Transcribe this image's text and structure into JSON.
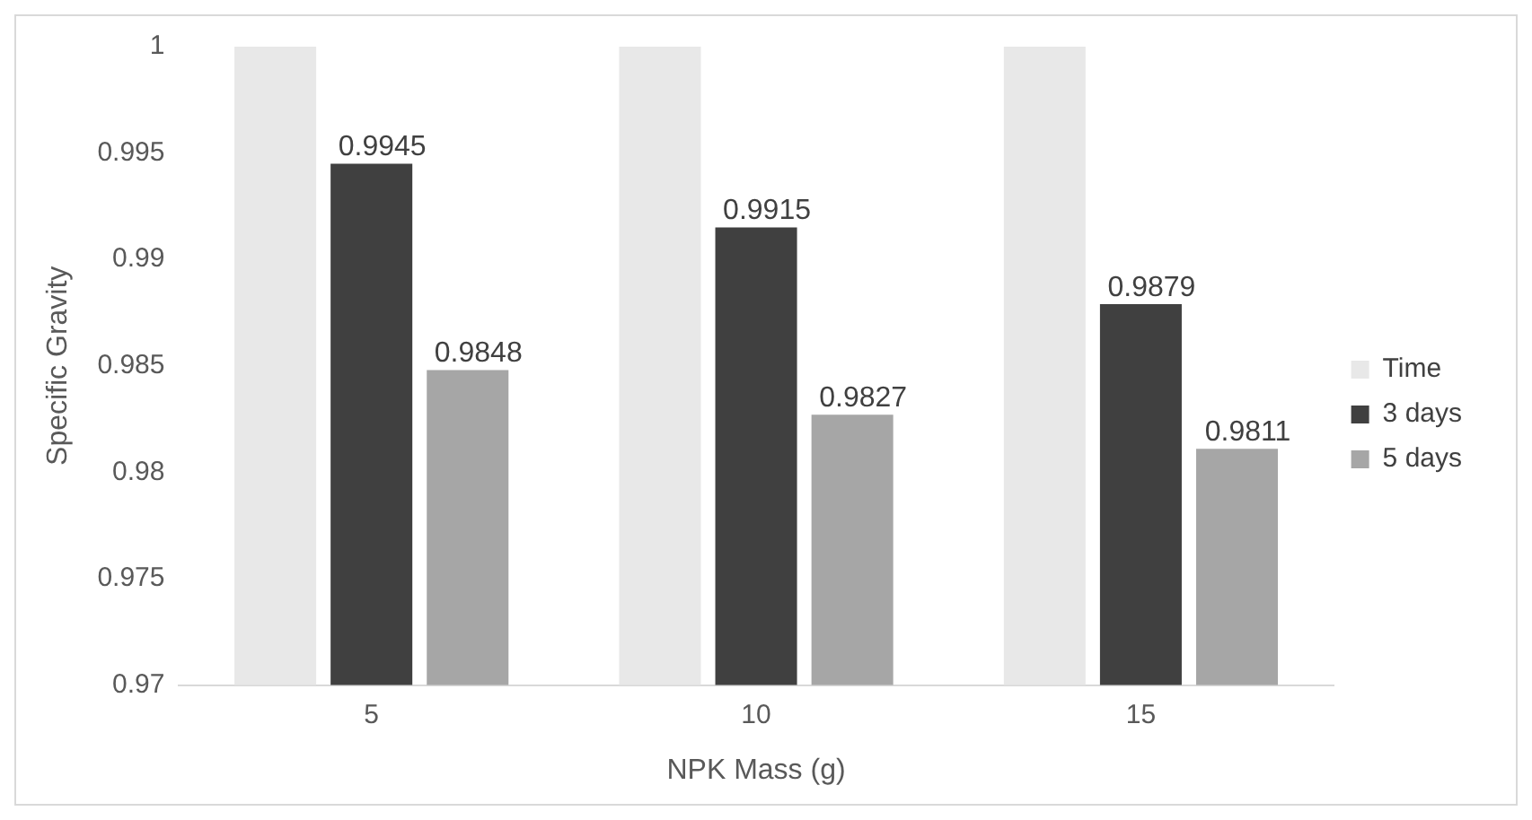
{
  "chart_data": {
    "type": "bar",
    "xlabel": "NPK Mass (g)",
    "ylabel": "Specific Gravity",
    "categories": [
      "5",
      "10",
      "15"
    ],
    "series": [
      {
        "name": "Time",
        "color": "#e8e8e8",
        "values": [
          1,
          1,
          1
        ]
      },
      {
        "name": "3 days",
        "color": "#404040",
        "values": [
          0.9945,
          0.9915,
          0.9879
        ],
        "value_labels": [
          "0.9945",
          "0.9915",
          "0.9879"
        ]
      },
      {
        "name": "5 days",
        "color": "#a6a6a6",
        "values": [
          0.9848,
          0.9827,
          0.9811
        ],
        "value_labels": [
          "0.9848",
          "0.9827",
          "0.9811"
        ]
      }
    ],
    "ylim": [
      0.97,
      1
    ],
    "yticks": [
      0.97,
      0.975,
      0.98,
      0.985,
      0.99,
      0.995,
      1
    ],
    "grid": false,
    "legend": "right"
  }
}
